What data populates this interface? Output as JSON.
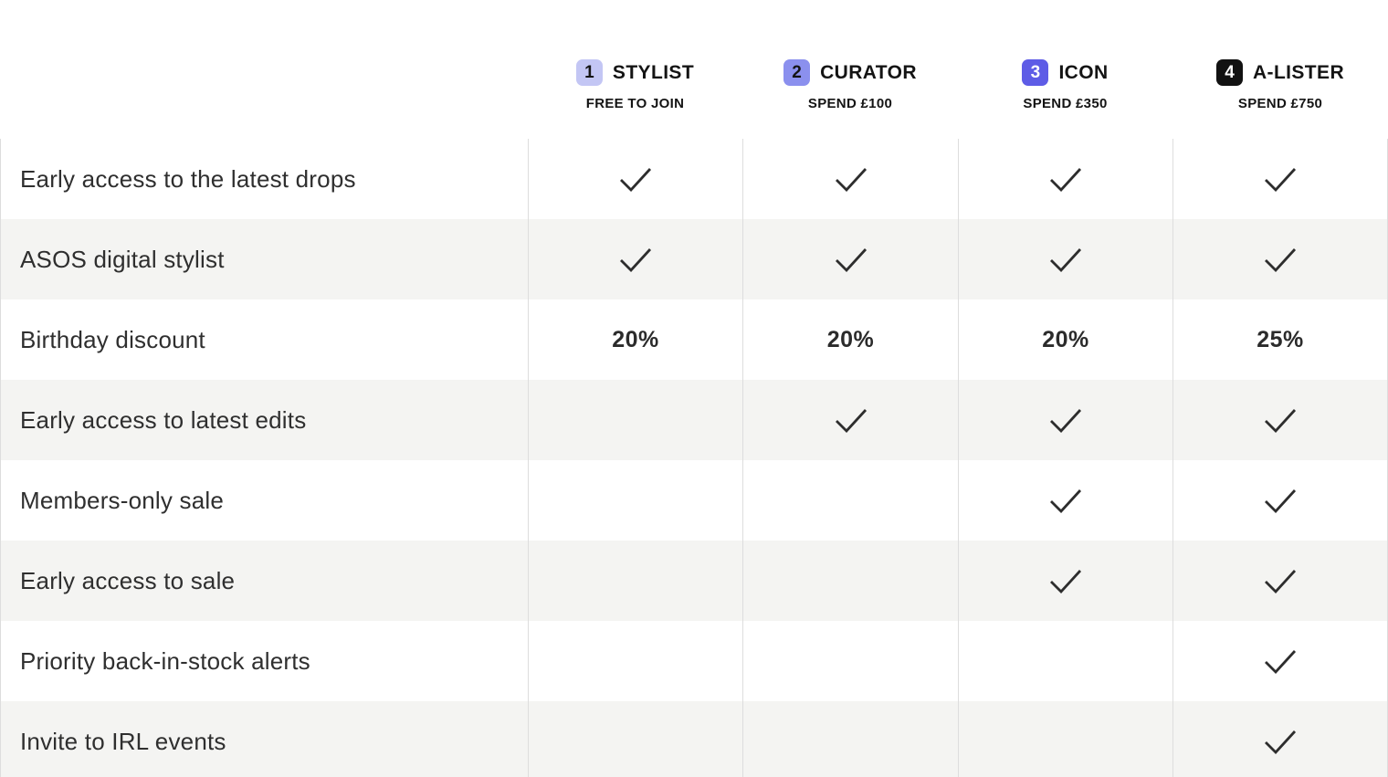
{
  "table": {
    "tiers": [
      {
        "number": "1",
        "name": "STYLIST",
        "requirement": "FREE TO JOIN",
        "badge_bg": "#c3c6f4",
        "badge_text": "#141414"
      },
      {
        "number": "2",
        "name": "CURATOR",
        "requirement": "SPEND £100",
        "badge_bg": "#8b90ee",
        "badge_text": "#141414"
      },
      {
        "number": "3",
        "name": "ICON",
        "requirement": "SPEND £350",
        "badge_bg": "#5e5ce6",
        "badge_text": "#ffffff"
      },
      {
        "number": "4",
        "name": "A-LISTER",
        "requirement": "SPEND £750",
        "badge_bg": "#121212",
        "badge_text": "#ffffff"
      }
    ],
    "benefits": [
      {
        "label": "Early access to the latest drops",
        "values": [
          "check",
          "check",
          "check",
          "check"
        ]
      },
      {
        "label": "ASOS digital stylist",
        "values": [
          "check",
          "check",
          "check",
          "check"
        ]
      },
      {
        "label": "Birthday discount",
        "values": [
          "20%",
          "20%",
          "20%",
          "25%"
        ]
      },
      {
        "label": "Early access to latest edits",
        "values": [
          "",
          "check",
          "check",
          "check"
        ]
      },
      {
        "label": "Members-only sale",
        "values": [
          "",
          "",
          "check",
          "check"
        ]
      },
      {
        "label": "Early access to sale",
        "values": [
          "",
          "",
          "check",
          "check"
        ]
      },
      {
        "label": "Priority back-in-stock alerts",
        "values": [
          "",
          "",
          "",
          "check"
        ]
      },
      {
        "label": "Invite to IRL events",
        "values": [
          "",
          "",
          "",
          "check"
        ]
      }
    ],
    "check_color": "#2d2d2d",
    "row_alt_bg": "#f4f4f2",
    "grid_line_color": "#dddddd"
  }
}
